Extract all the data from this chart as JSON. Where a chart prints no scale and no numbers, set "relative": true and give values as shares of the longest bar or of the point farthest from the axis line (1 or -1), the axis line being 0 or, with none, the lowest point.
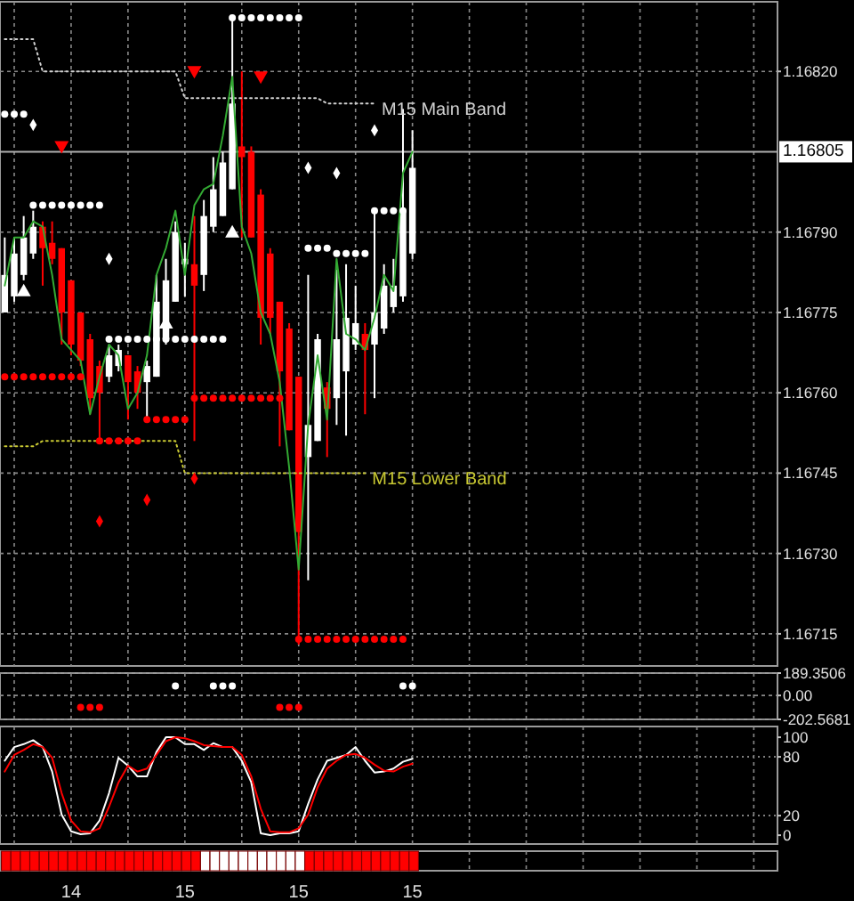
{
  "chart_data": [
    {
      "type": "candlestick",
      "categories": [
        null,
        null,
        null,
        null,
        null,
        null,
        null,
        "14",
        null,
        null,
        null,
        null,
        null,
        null,
        null,
        null,
        null,
        null,
        null,
        "15",
        null,
        null,
        null,
        null,
        null,
        null,
        null,
        null,
        null,
        null,
        null,
        "15",
        null,
        null,
        null,
        null,
        null,
        null,
        null,
        null,
        null,
        null,
        null,
        "15",
        null,
        null,
        null,
        null,
        null,
        null,
        null,
        null,
        null,
        null,
        null,
        null,
        null,
        null,
        null,
        null,
        null,
        null,
        null,
        null,
        null,
        null,
        null,
        null,
        null,
        null,
        null,
        null,
        null,
        null,
        null,
        null,
        null,
        null,
        null,
        null,
        null,
        null
      ],
      "ohlc": [
        [
          1.16775,
          1.16789,
          1.16775,
          1.16782
        ],
        [
          1.16778,
          1.16789,
          1.16777,
          1.16786
        ],
        [
          1.16782,
          1.16793,
          1.16781,
          1.16789
        ],
        [
          1.16786,
          1.16794,
          1.16785,
          1.16791
        ],
        [
          1.16791,
          1.16792,
          1.1678,
          1.16787
        ],
        [
          1.16788,
          1.16792,
          1.16784,
          1.16785
        ],
        [
          1.16787,
          1.16787,
          1.16769,
          1.16775
        ],
        [
          1.16781,
          1.16781,
          1.16767,
          1.16769
        ],
        [
          1.16775,
          1.16775,
          1.16765,
          1.16766
        ],
        [
          1.1677,
          1.16771,
          1.16756,
          1.16759
        ],
        [
          1.16765,
          1.16766,
          1.16751,
          1.1676
        ],
        [
          1.16763,
          1.16769,
          1.16762,
          1.16767
        ],
        [
          1.16765,
          1.16769,
          1.16764,
          1.16768
        ],
        [
          1.16767,
          1.16767,
          1.16755,
          1.16762
        ],
        [
          1.16764,
          1.16765,
          1.16757,
          1.1676
        ],
        [
          1.16762,
          1.16766,
          1.16755,
          1.16765
        ],
        [
          1.16763,
          1.16782,
          1.16763,
          1.16777
        ],
        [
          1.1677,
          1.16785,
          1.16769,
          1.16781
        ],
        [
          1.16777,
          1.16792,
          1.16777,
          1.1679
        ],
        [
          1.16784,
          1.16788,
          1.16778,
          1.16785
        ],
        [
          1.16784,
          1.16793,
          1.16751,
          1.1678
        ],
        [
          1.16782,
          1.16796,
          1.16779,
          1.16793
        ],
        [
          1.16791,
          1.16804,
          1.1679,
          1.16798
        ],
        [
          1.16793,
          1.16805,
          1.16793,
          1.16803
        ],
        [
          1.16798,
          1.1683,
          1.16798,
          1.16814
        ],
        [
          1.16806,
          1.1682,
          1.16789,
          1.16804
        ],
        [
          1.16805,
          1.16806,
          1.16789,
          1.16789
        ],
        [
          1.16797,
          1.16798,
          1.16769,
          1.16774
        ],
        [
          1.16786,
          1.16787,
          1.16771,
          1.16774
        ],
        [
          1.16777,
          1.16777,
          1.1675,
          1.16764
        ],
        [
          1.16772,
          1.16773,
          1.16753,
          1.16753
        ],
        [
          1.16763,
          1.16763,
          1.16713,
          1.16734
        ],
        [
          1.16748,
          1.16782,
          1.16725,
          1.16754
        ],
        [
          1.16751,
          1.16771,
          1.16751,
          1.1677
        ],
        [
          1.16761,
          1.16762,
          1.16748,
          1.16757
        ],
        [
          1.16759,
          1.16783,
          1.16754,
          1.1677
        ],
        [
          1.16764,
          1.16784,
          1.16752,
          1.16774
        ],
        [
          1.16769,
          1.1678,
          1.16768,
          1.16773
        ],
        [
          1.16771,
          1.16773,
          1.16756,
          1.16768
        ],
        [
          1.16769,
          1.16794,
          1.16759,
          1.16775
        ],
        [
          1.16772,
          1.16784,
          1.16771,
          1.1678
        ],
        [
          1.16776,
          1.16785,
          1.16775,
          1.1678
        ],
        [
          1.16778,
          1.16813,
          1.16777,
          1.16794
        ],
        [
          1.16786,
          1.16809,
          1.16785,
          1.16802
        ],
        null,
        null,
        null,
        null,
        null,
        null,
        null,
        null,
        null,
        null,
        null,
        null,
        null,
        null,
        null,
        null,
        null,
        null,
        null,
        null,
        null,
        null,
        null,
        null,
        null,
        null,
        null,
        null,
        null,
        null,
        null,
        null,
        null,
        null,
        null,
        null,
        null,
        null
      ],
      "colors": [
        "#ffffff",
        "#ffffff",
        "#ffffff",
        "#ffffff",
        "#ff0000",
        "#ff0000",
        "#ff0000",
        "#ff0000",
        "#ff0000",
        "#ff0000",
        "#ff0000",
        "#ffffff",
        "#ffffff",
        "#ff0000",
        "#ff0000",
        "#ffffff",
        "#ffffff",
        "#ffffff",
        "#ffffff",
        "#ffffff",
        "#ff0000",
        "#ffffff",
        "#ffffff",
        "#ffffff",
        "#ffffff",
        "#ff0000",
        "#ff0000",
        "#ff0000",
        "#ff0000",
        "#ff0000",
        "#ff0000",
        "#ff0000",
        "#ffffff",
        "#ffffff",
        "#ff0000",
        "#ffffff",
        "#ffffff",
        "#ffffff",
        "#ff0000",
        "#ffffff",
        "#ffffff",
        "#ffffff",
        "#ffffff",
        "#ffffff",
        null,
        null,
        null,
        null,
        null,
        null,
        null,
        null,
        null,
        null,
        null,
        null,
        null,
        null,
        null,
        null,
        null,
        null,
        null,
        null,
        null,
        null,
        null,
        null,
        null,
        null,
        null,
        null,
        null,
        null,
        null,
        null,
        null,
        null,
        null,
        null,
        null,
        null
      ],
      "ylim": [
        1.16709,
        1.16833
      ],
      "yticks": [
        1.16715,
        {
          "value": 1.1673,
          "label": "1.16730"
        },
        1.16745,
        {
          "value": 1.1676,
          "label": "1.16760"
        },
        1.16775,
        {
          "value": 1.1679,
          "label": "1.16790"
        },
        {
          "value": 1.1682,
          "label": "1.16820"
        }
      ],
      "grid": true,
      "tick_labels": "y",
      "ref_lines": [
        {
          "axis": "y",
          "value": 1.16805,
          "label": "1.16805",
          "color": "#b0b0b0"
        }
      ],
      "series": [
        {
          "name": "M15 Main Band",
          "type": "line",
          "color": "#d0d0d0",
          "line_style": "dotted",
          "values": [
            1.16826,
            1.16826,
            1.16826,
            1.16826,
            1.1682,
            1.1682,
            1.1682,
            1.1682,
            1.1682,
            1.1682,
            1.1682,
            1.1682,
            1.1682,
            1.1682,
            1.1682,
            1.1682,
            1.1682,
            1.1682,
            1.1682,
            1.16815,
            1.16815,
            1.16815,
            1.16815,
            1.16815,
            1.16815,
            1.16815,
            1.16815,
            1.16815,
            1.16815,
            1.16815,
            1.16815,
            1.16815,
            1.16815,
            1.16815,
            1.16814,
            1.16814,
            1.16814,
            1.16814,
            1.16814,
            1.16814,
            null,
            null,
            null,
            null,
            null,
            null,
            null,
            null,
            null,
            null,
            null,
            null,
            null,
            null,
            null,
            null,
            null,
            null,
            null,
            null,
            null,
            null,
            null,
            null,
            null,
            null,
            null,
            null,
            null,
            null,
            null,
            null,
            null,
            null,
            null,
            null,
            null,
            null,
            null,
            null,
            null,
            null
          ]
        },
        {
          "name": "M15 Lower Band",
          "type": "line",
          "color": "#c8c832",
          "line_style": "dotted",
          "values": [
            1.1675,
            1.1675,
            1.1675,
            1.1675,
            1.16751,
            1.16751,
            1.16751,
            1.16751,
            1.16751,
            1.16751,
            1.16751,
            1.16751,
            1.16751,
            1.16751,
            1.16751,
            1.16751,
            1.16751,
            1.16751,
            1.16751,
            1.16745,
            1.16745,
            1.16745,
            1.16745,
            1.16745,
            1.16745,
            1.16745,
            1.16745,
            1.16745,
            1.16745,
            1.16745,
            1.16745,
            1.16745,
            1.16745,
            1.16745,
            1.16745,
            1.16745,
            1.16745,
            1.16745,
            1.16745,
            null,
            null,
            null,
            null,
            null,
            null,
            null,
            null,
            null,
            null,
            null,
            null,
            null,
            null,
            null,
            null,
            null,
            null,
            null,
            null,
            null,
            null,
            null,
            null,
            null,
            null,
            null,
            null,
            null,
            null,
            null,
            null,
            null,
            null,
            null,
            null,
            null,
            null,
            null,
            null,
            null,
            null,
            null
          ]
        },
        {
          "type": "line",
          "color": "#33aa33",
          "line_style": "solid",
          "values": [
            1.1678,
            1.16789,
            1.16789,
            1.16792,
            1.16791,
            1.16782,
            1.1677,
            1.16768,
            1.16766,
            1.16756,
            1.16763,
            1.16769,
            1.16767,
            1.16757,
            1.1676,
            1.16767,
            1.16782,
            1.16787,
            1.16794,
            1.16782,
            1.16795,
            1.16798,
            1.16799,
            1.16808,
            1.16819,
            1.16791,
            1.16786,
            1.16775,
            1.16771,
            1.16762,
            1.16746,
            1.16727,
            1.16754,
            1.16767,
            1.16755,
            1.16785,
            1.16771,
            1.1677,
            1.16768,
            1.16774,
            1.16782,
            1.16779,
            1.16801,
            1.16805,
            null,
            null,
            null,
            null,
            null,
            null,
            null,
            null,
            null,
            null,
            null,
            null,
            null,
            null,
            null,
            null,
            null,
            null,
            null,
            null,
            null,
            null,
            null,
            null,
            null,
            null,
            null,
            null,
            null,
            null,
            null,
            null,
            null,
            null,
            null,
            null,
            null,
            null
          ]
        },
        {
          "type": "scatter",
          "color": "#ffffff",
          "marker": "circle",
          "values": [
            1.16812,
            1.16812,
            1.16812,
            1.16795,
            1.16795,
            1.16795,
            1.16795,
            1.16795,
            1.16795,
            1.16795,
            1.16795,
            1.1677,
            1.1677,
            1.1677,
            1.1677,
            1.1677,
            1.1677,
            1.1677,
            1.1677,
            1.1677,
            1.1677,
            1.1677,
            1.1677,
            1.1677,
            1.1683,
            1.1683,
            1.1683,
            1.1683,
            1.1683,
            1.1683,
            1.1683,
            1.1683,
            1.16787,
            1.16787,
            1.16787,
            1.16786,
            1.16786,
            1.16786,
            1.16786,
            1.16794,
            1.16794,
            1.16794,
            1.16794,
            null,
            null,
            null,
            null,
            null,
            null,
            null,
            null,
            null,
            null,
            null,
            null,
            null,
            null,
            null,
            null,
            null,
            null,
            null,
            null,
            null,
            null,
            null,
            null,
            null,
            null,
            null,
            null,
            null,
            null,
            null,
            null,
            null,
            null,
            null,
            null,
            null,
            null,
            null
          ]
        },
        {
          "type": "scatter",
          "color": "#ff0000",
          "marker": "circle",
          "values": [
            1.16763,
            1.16763,
            1.16763,
            1.16763,
            1.16763,
            1.16763,
            1.16763,
            1.16763,
            1.16763,
            null,
            1.16751,
            1.16751,
            1.16751,
            1.16751,
            1.16751,
            1.16755,
            1.16755,
            1.16755,
            1.16755,
            1.16755,
            1.16759,
            1.16759,
            1.16759,
            1.16759,
            1.16759,
            1.16759,
            1.16759,
            1.16759,
            1.16759,
            1.16759,
            null,
            1.16714,
            1.16714,
            1.16714,
            1.16714,
            1.16714,
            1.16714,
            1.16714,
            1.16714,
            1.16714,
            1.16714,
            1.16714,
            1.16714,
            null,
            null,
            null,
            null,
            null,
            null,
            null,
            null,
            null,
            null,
            null,
            null,
            null,
            null,
            null,
            null,
            null,
            null,
            null,
            null,
            null,
            null,
            null,
            null,
            null,
            null,
            null,
            null,
            null,
            null,
            null,
            null,
            null,
            null,
            null,
            null,
            null,
            null,
            null
          ]
        },
        {
          "type": "scatter",
          "color": "#ffffff",
          "marker": "diamond",
          "values": [
            null,
            null,
            null,
            1.1681,
            null,
            null,
            null,
            null,
            null,
            null,
            null,
            1.16785,
            null,
            null,
            null,
            null,
            null,
            null,
            null,
            null,
            null,
            null,
            null,
            null,
            null,
            null,
            null,
            null,
            null,
            null,
            null,
            null,
            1.16802,
            null,
            null,
            1.16801,
            null,
            null,
            null,
            1.16809,
            null,
            null,
            null,
            null,
            null,
            null,
            null,
            null,
            null,
            null,
            null,
            null,
            null,
            null,
            null,
            null,
            null,
            null,
            null,
            null,
            null,
            null,
            null,
            null,
            null,
            null,
            null,
            null,
            null,
            null,
            null,
            null,
            null,
            null,
            null,
            null,
            null,
            null,
            null,
            null,
            null,
            null
          ]
        },
        {
          "type": "scatter",
          "color": "#ff0000",
          "marker": "diamond",
          "values": [
            null,
            null,
            null,
            null,
            null,
            null,
            null,
            null,
            null,
            null,
            1.16736,
            null,
            null,
            null,
            null,
            1.1674,
            null,
            null,
            null,
            null,
            1.16744,
            null,
            null,
            null,
            null,
            null,
            null,
            null,
            null,
            null,
            null,
            null,
            null,
            null,
            null,
            null,
            null,
            null,
            null,
            null,
            null,
            null,
            null,
            null,
            null,
            null,
            null,
            null,
            null,
            null,
            null,
            null,
            null,
            null,
            null,
            null,
            null,
            null,
            null,
            null,
            null,
            null,
            null,
            null,
            null,
            null,
            null,
            null,
            null,
            null,
            null,
            null,
            null,
            null,
            null,
            null,
            null,
            null,
            null,
            null,
            null,
            null
          ]
        },
        {
          "type": "scatter",
          "color": "#ffffff",
          "marker": "triangle",
          "values": [
            null,
            null,
            1.16779,
            null,
            null,
            null,
            null,
            null,
            null,
            null,
            null,
            null,
            null,
            null,
            null,
            null,
            null,
            1.16773,
            null,
            null,
            null,
            null,
            null,
            null,
            1.1679,
            null,
            null,
            null,
            null,
            null,
            null,
            null,
            null,
            null,
            null,
            null,
            null,
            null,
            null,
            null,
            null,
            null,
            null,
            null,
            null,
            null,
            null,
            null,
            null,
            null,
            null,
            null,
            null,
            null,
            null,
            null,
            null,
            null,
            null,
            null,
            null,
            null,
            null,
            null,
            null,
            null,
            null,
            null,
            null,
            null,
            null,
            null,
            null,
            null,
            null,
            null,
            null,
            null,
            null,
            null,
            null,
            null
          ]
        },
        {
          "type": "scatter",
          "color": "#ff0000",
          "marker": "triangle",
          "values": [
            null,
            null,
            null,
            null,
            null,
            null,
            1.16806,
            null,
            null,
            null,
            null,
            null,
            null,
            null,
            null,
            null,
            null,
            null,
            null,
            null,
            1.1682,
            null,
            null,
            null,
            null,
            null,
            null,
            1.16819,
            null,
            null,
            null,
            null,
            null,
            null,
            null,
            null,
            null,
            null,
            null,
            null,
            null,
            null,
            null,
            null,
            null,
            null,
            null,
            null,
            null,
            null,
            null,
            null,
            null,
            null,
            null,
            null,
            null,
            null,
            null,
            null,
            null,
            null,
            null,
            null,
            null,
            null,
            null,
            null,
            null,
            null,
            null,
            null,
            null,
            null,
            null,
            null,
            null,
            null,
            null,
            null,
            null,
            null
          ]
        }
      ]
    },
    {
      "type": "scatter",
      "categories": [
        null,
        null,
        null,
        null,
        null,
        null,
        null,
        "14",
        null,
        null,
        null,
        null,
        null,
        null,
        null,
        null,
        null,
        null,
        null,
        "15",
        null,
        null,
        null,
        null,
        null,
        null,
        null,
        null,
        null,
        null,
        null,
        "15",
        null,
        null,
        null,
        null,
        null,
        null,
        null,
        null,
        null,
        null,
        null,
        "15",
        null,
        null,
        null,
        null,
        null,
        null,
        null,
        null,
        null,
        null,
        null,
        null,
        null,
        null,
        null,
        null,
        null,
        null,
        null,
        null,
        null,
        null,
        null,
        null,
        null,
        null,
        null,
        null,
        null,
        null,
        null,
        null,
        null,
        null,
        null,
        null,
        null,
        null
      ],
      "ylim": [
        -202.5681,
        189.3506
      ],
      "yticks": [
        189.3506,
        {
          "value": 0,
          "label": "0.00"
        },
        -202.5681
      ],
      "grid": true,
      "tick_labels": "y",
      "series": [
        {
          "color": "#ffffff",
          "marker": "circle",
          "values": [
            null,
            null,
            null,
            null,
            null,
            null,
            null,
            null,
            null,
            null,
            null,
            null,
            null,
            null,
            null,
            null,
            null,
            null,
            80,
            null,
            null,
            null,
            80,
            80,
            80,
            null,
            null,
            null,
            null,
            null,
            null,
            null,
            null,
            null,
            null,
            null,
            null,
            null,
            null,
            null,
            null,
            null,
            80,
            80,
            null,
            null,
            null,
            null,
            null,
            null,
            null,
            null,
            null,
            null,
            null,
            null,
            null,
            null,
            null,
            null,
            null,
            null,
            null,
            null,
            null,
            null,
            null,
            null,
            null,
            null,
            null,
            null,
            null,
            null,
            null,
            null,
            null,
            null,
            null,
            null,
            null,
            null
          ]
        },
        {
          "color": "#ff0000",
          "marker": "circle",
          "values": [
            null,
            null,
            null,
            null,
            null,
            null,
            null,
            null,
            -100,
            -100,
            -100,
            null,
            null,
            null,
            null,
            null,
            null,
            null,
            null,
            null,
            null,
            null,
            null,
            null,
            null,
            null,
            null,
            null,
            null,
            -100,
            -100,
            -100,
            null,
            null,
            null,
            null,
            null,
            null,
            null,
            null,
            null,
            null,
            null,
            null,
            null,
            null,
            null,
            null,
            null,
            null,
            null,
            null,
            null,
            null,
            null,
            null,
            null,
            null,
            null,
            null,
            null,
            null,
            null,
            null,
            null,
            null,
            null,
            null,
            null,
            null,
            null,
            null,
            null,
            null,
            null,
            null,
            null,
            null,
            null,
            null,
            null,
            null
          ]
        }
      ]
    },
    {
      "type": "line",
      "categories": [
        null,
        null,
        null,
        null,
        null,
        null,
        null,
        "14",
        null,
        null,
        null,
        null,
        null,
        null,
        null,
        null,
        null,
        null,
        null,
        "15",
        null,
        null,
        null,
        null,
        null,
        null,
        null,
        null,
        null,
        null,
        null,
        "15",
        null,
        null,
        null,
        null,
        null,
        null,
        null,
        null,
        null,
        null,
        null,
        "15",
        null,
        null,
        null,
        null,
        null,
        null,
        null,
        null,
        null,
        null,
        null,
        null,
        null,
        null,
        null,
        null,
        null,
        null,
        null,
        null,
        null,
        null,
        null,
        null,
        null,
        null,
        null,
        null,
        null,
        null,
        null,
        null,
        null,
        null,
        null,
        null,
        null,
        null
      ],
      "ylim": [
        -9,
        111
      ],
      "yticks": [
        100,
        80,
        20,
        0
      ],
      "grid": "x",
      "tick_labels": "y",
      "ref_lines": [
        {
          "axis": "y",
          "value": 80,
          "color": "#808080",
          "line_style": "dotted"
        },
        {
          "axis": "y",
          "value": 20,
          "color": "#808080",
          "line_style": "dotted"
        }
      ],
      "series": [
        {
          "color": "#ffffff",
          "values": [
            76,
            90,
            93,
            97,
            90,
            65,
            21,
            4,
            1,
            2,
            15,
            43,
            79,
            71,
            60,
            60,
            85,
            100,
            100,
            93,
            93,
            87,
            94,
            90,
            90,
            76,
            54,
            2,
            0,
            2,
            2,
            4,
            32,
            57,
            76,
            79,
            82,
            90,
            76,
            64,
            65,
            68,
            75,
            78,
            null,
            null,
            null,
            null,
            null,
            null,
            null,
            null,
            null,
            null,
            null,
            null,
            null,
            null,
            null,
            null,
            null,
            null,
            null,
            null,
            null,
            null,
            null,
            null,
            null,
            null,
            null,
            null,
            null,
            null,
            null,
            null,
            null,
            null,
            null,
            null,
            null,
            null
          ]
        },
        {
          "color": "#ff0000",
          "values": [
            65,
            82,
            87,
            93,
            90,
            79,
            43,
            15,
            4,
            3,
            7,
            29,
            54,
            71,
            65,
            68,
            82,
            96,
            100,
            99,
            96,
            92,
            91,
            90,
            90,
            82,
            60,
            27,
            4,
            3,
            3,
            7,
            21,
            49,
            68,
            76,
            82,
            83,
            79,
            72,
            66,
            65,
            70,
            73,
            null,
            null,
            null,
            null,
            null,
            null,
            null,
            null,
            null,
            null,
            null,
            null,
            null,
            null,
            null,
            null,
            null,
            null,
            null,
            null,
            null,
            null,
            null,
            null,
            null,
            null,
            null,
            null,
            null,
            null,
            null,
            null,
            null,
            null,
            null,
            null,
            null,
            null
          ]
        }
      ]
    },
    {
      "type": "bar",
      "relative": true,
      "categories": [
        null,
        null,
        null,
        null,
        null,
        null,
        null,
        "14",
        null,
        null,
        null,
        null,
        null,
        null,
        null,
        null,
        null,
        null,
        null,
        "15",
        null,
        null,
        null,
        null,
        null,
        null,
        null,
        null,
        null,
        null,
        null,
        "15",
        null,
        null,
        null,
        null,
        null,
        null,
        null,
        null,
        null,
        null,
        null,
        "15",
        null,
        null,
        null,
        null,
        null,
        null,
        null,
        null,
        null,
        null,
        null,
        null,
        null,
        null,
        null,
        null,
        null,
        null,
        null,
        null,
        null,
        null,
        null,
        null,
        null,
        null,
        null,
        null,
        null,
        null,
        null,
        null,
        null,
        null,
        null,
        null,
        null,
        null
      ],
      "grid": "x",
      "tick_labels": "x",
      "values": [
        1,
        1,
        1,
        1,
        1,
        1,
        1,
        1,
        1,
        1,
        1,
        1,
        1,
        1,
        1,
        1,
        1,
        1,
        1,
        1,
        1,
        1,
        1,
        1,
        1,
        1,
        1,
        1,
        1,
        1,
        1,
        1,
        1,
        1,
        1,
        1,
        1,
        1,
        1,
        1,
        1,
        1,
        1,
        1,
        null,
        null,
        null,
        null,
        null,
        null,
        null,
        null,
        null,
        null,
        null,
        null,
        null,
        null,
        null,
        null,
        null,
        null,
        null,
        null,
        null,
        null,
        null,
        null,
        null,
        null,
        null,
        null,
        null,
        null,
        null,
        null,
        null,
        null,
        null,
        null,
        null,
        null
      ],
      "colors": [
        "#ff0000",
        "#ff0000",
        "#ff0000",
        "#ff0000",
        "#ff0000",
        "#ff0000",
        "#ff0000",
        "#ff0000",
        "#ff0000",
        "#ff0000",
        "#ff0000",
        "#ff0000",
        "#ff0000",
        "#ff0000",
        "#ff0000",
        "#ff0000",
        "#ff0000",
        "#ff0000",
        "#ff0000",
        "#ff0000",
        "#ff0000",
        "#ffffff",
        "#ffffff",
        "#ffffff",
        "#ffffff",
        "#ffffff",
        "#ffffff",
        "#ffffff",
        "#ffffff",
        "#ffffff",
        "#ffffff",
        "#ffffff",
        "#ff0000",
        "#ff0000",
        "#ff0000",
        "#ff0000",
        "#ff0000",
        "#ff0000",
        "#ff0000",
        "#ff0000",
        "#ff0000",
        "#ff0000",
        "#ff0000",
        "#ff0000",
        null,
        null,
        null,
        null,
        null,
        null,
        null,
        null,
        null,
        null,
        null,
        null,
        null,
        null,
        null,
        null,
        null,
        null,
        null,
        null,
        null,
        null,
        null,
        null,
        null,
        null,
        null,
        null,
        null,
        null,
        null,
        null,
        null,
        null,
        null,
        null,
        null,
        null
      ]
    }
  ]
}
